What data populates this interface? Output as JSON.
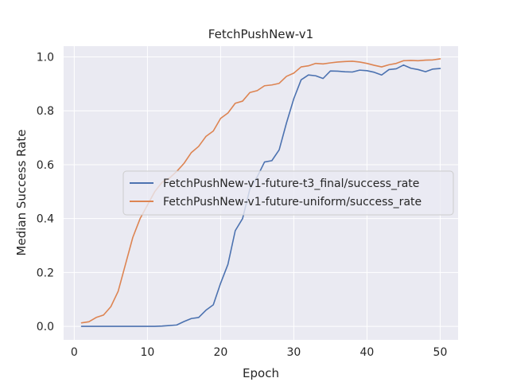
{
  "chart_data": {
    "type": "line",
    "title": "FetchPushNew-v1",
    "xlabel": "Epoch",
    "ylabel": "Median Success Rate",
    "xlim": [
      -1.45,
      52.45
    ],
    "ylim": [
      -0.05,
      1.04
    ],
    "xticks": [
      0,
      10,
      20,
      30,
      40,
      50
    ],
    "yticks": [
      0.0,
      0.2,
      0.4,
      0.6,
      0.8,
      1.0
    ],
    "xtick_labels": [
      "0",
      "10",
      "20",
      "30",
      "40",
      "50"
    ],
    "ytick_labels": [
      "0.0",
      "0.2",
      "0.4",
      "0.6",
      "0.8",
      "1.0"
    ],
    "grid": true,
    "legend_position": "center-right",
    "x": [
      1,
      2,
      3,
      4,
      5,
      6,
      7,
      8,
      9,
      10,
      11,
      12,
      13,
      14,
      15,
      16,
      17,
      18,
      19,
      20,
      21,
      22,
      23,
      24,
      25,
      26,
      27,
      28,
      29,
      30,
      31,
      32,
      33,
      34,
      35,
      36,
      37,
      38,
      39,
      40,
      41,
      42,
      43,
      44,
      45,
      46,
      47,
      48,
      49,
      50
    ],
    "series": [
      {
        "name": "FetchPushNew-v1-future-t3_final/success_rate",
        "color": "#4c72b0",
        "values": [
          0.0,
          0.0,
          0.0,
          0.0,
          0.0,
          0.0,
          0.0,
          0.0,
          0.0,
          0.0,
          0.0,
          0.001,
          0.003,
          0.005,
          0.018,
          0.029,
          0.033,
          0.06,
          0.08,
          0.16,
          0.23,
          0.355,
          0.4,
          0.51,
          0.555,
          0.61,
          0.615,
          0.655,
          0.755,
          0.845,
          0.915,
          0.933,
          0.93,
          0.92,
          0.948,
          0.947,
          0.945,
          0.944,
          0.951,
          0.949,
          0.943,
          0.933,
          0.953,
          0.956,
          0.97,
          0.958,
          0.953,
          0.945,
          0.955,
          0.957
        ]
      },
      {
        "name": "FetchPushNew-v1-future-uniform/success_rate",
        "color": "#dd8452",
        "values": [
          0.013,
          0.017,
          0.033,
          0.042,
          0.073,
          0.13,
          0.23,
          0.33,
          0.4,
          0.45,
          0.5,
          0.535,
          0.55,
          0.575,
          0.605,
          0.645,
          0.668,
          0.705,
          0.725,
          0.772,
          0.792,
          0.828,
          0.836,
          0.868,
          0.875,
          0.893,
          0.896,
          0.902,
          0.928,
          0.94,
          0.963,
          0.967,
          0.976,
          0.974,
          0.978,
          0.981,
          0.983,
          0.984,
          0.981,
          0.976,
          0.969,
          0.963,
          0.971,
          0.976,
          0.986,
          0.987,
          0.986,
          0.988,
          0.989,
          0.993
        ]
      }
    ]
  }
}
